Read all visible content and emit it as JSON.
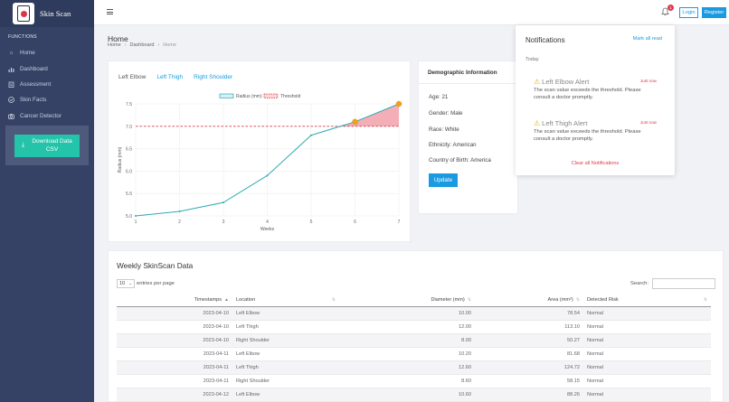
{
  "app": {
    "name": "Skin Scan"
  },
  "sidebar": {
    "header": "FUNCTIONS",
    "items": [
      {
        "label": "Home",
        "icon": "home-icon"
      },
      {
        "label": "Dashboard",
        "icon": "bar-chart-icon"
      },
      {
        "label": "Assessment",
        "icon": "clipboard-icon"
      },
      {
        "label": "Skin Facts",
        "icon": "check-circle-icon"
      },
      {
        "label": "Cancer Detector",
        "icon": "camera-icon"
      }
    ],
    "download_label": "Download Data CSV"
  },
  "topbar": {
    "badge_count": "1",
    "login_label": "Login",
    "register_label": "Register"
  },
  "page": {
    "title": "Home",
    "breadcrumb": [
      "Home",
      "Dashboard",
      "Home"
    ]
  },
  "chart_tabs": [
    "Left Elbow",
    "Left Thigh",
    "Right Shoulder"
  ],
  "chart_data": {
    "type": "line",
    "x": [
      1,
      2,
      3,
      4,
      5,
      6,
      7
    ],
    "series": [
      {
        "name": "Radius (mm)",
        "values": [
          5.0,
          5.1,
          5.3,
          5.9,
          6.8,
          7.1,
          7.5
        ],
        "color": "#2eaab4"
      },
      {
        "name": "Threshold",
        "values": [
          7.0,
          7.0,
          7.0,
          7.0,
          7.0,
          7.0,
          7.0
        ],
        "color": "#e0394a",
        "style": "dashed"
      }
    ],
    "highlight_points": [
      6,
      7
    ],
    "xlabel": "Weeks",
    "ylabel": "Radius (mm)",
    "xlim": [
      1,
      7
    ],
    "ylim": [
      5.0,
      7.5
    ],
    "yticks": [
      "5.0",
      "5.5",
      "6.0",
      "6.5",
      "7.0",
      "7.5"
    ],
    "xticks": [
      "1",
      "2",
      "3",
      "4",
      "5",
      "6",
      "7"
    ],
    "legend": "top-center",
    "grid": true
  },
  "demographics": {
    "title": "Demographic Information",
    "rows": [
      "Age: 21",
      "Gender: Male",
      "Race: White",
      "Ethnicity: American",
      "Country of Birth: America"
    ],
    "update_label": "Update"
  },
  "notifications": {
    "title": "Notifications",
    "mark_all": "Mark all read",
    "section": "Today",
    "items": [
      {
        "title": "Left Elbow Alert",
        "time": "Just now",
        "message": "The scan value exceeds the threshold. Please consult a doctor promptly."
      },
      {
        "title": "Left Thigh Alert",
        "time": "Just now",
        "message": "The scan value exceeds the threshold. Please consult a doctor promptly."
      }
    ],
    "clear_all": "Clear all Notifications"
  },
  "table": {
    "title": "Weekly SkinScan Data",
    "entries_value": "10",
    "entries_label": "entries per page",
    "search_label": "Search:",
    "columns": [
      "Timestamps",
      "Location",
      "Diameter (mm)",
      "Area (mm²)",
      "Detected Risk"
    ],
    "rows": [
      [
        "2023-04-10",
        "Left Elbow",
        "10.00",
        "78.54",
        "Normal"
      ],
      [
        "2023-04-10",
        "Left Thigh",
        "12.00",
        "113.10",
        "Normal"
      ],
      [
        "2023-04-10",
        "Right Shoulder",
        "8.00",
        "50.27",
        "Normal"
      ],
      [
        "2023-04-11",
        "Left Elbow",
        "10.20",
        "81.68",
        "Normal"
      ],
      [
        "2023-04-11",
        "Left Thigh",
        "12.60",
        "124.72",
        "Normal"
      ],
      [
        "2023-04-11",
        "Right Shoulder",
        "8.60",
        "58.15",
        "Normal"
      ],
      [
        "2023-04-12",
        "Left Elbow",
        "10.60",
        "88.26",
        "Normal"
      ]
    ]
  }
}
